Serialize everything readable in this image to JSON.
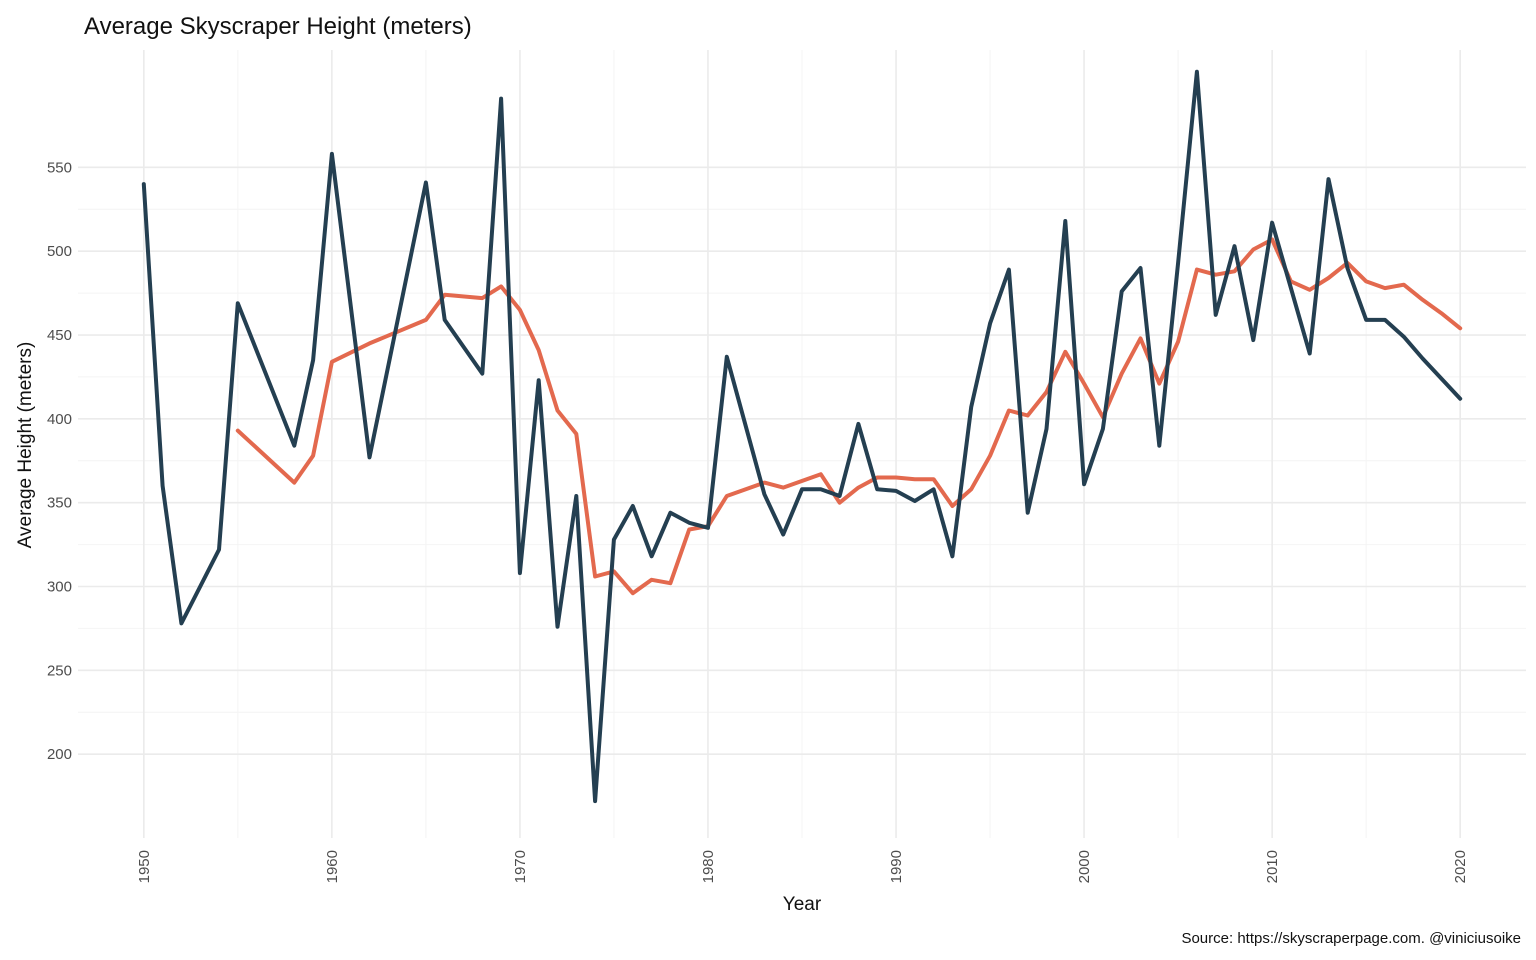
{
  "chart_data": {
    "type": "line",
    "title": "Average Skyscraper Height (meters)",
    "xlabel": "Year",
    "ylabel": "Average Height (meters)",
    "caption": "Source: https://skyscraperpage.com. @viniciusoike",
    "xlim": [
      1946.5,
      2023.5
    ],
    "ylim": [
      150,
      620
    ],
    "x_ticks": [
      1950,
      1960,
      1970,
      1980,
      1990,
      2000,
      2010,
      2020
    ],
    "y_ticks": [
      200,
      250,
      300,
      350,
      400,
      450,
      500,
      550
    ],
    "grid": true,
    "legend": "none",
    "series": [
      {
        "color": "#243f51",
        "x": [
          1950,
          1951,
          1952,
          1954,
          1955,
          1958,
          1959,
          1960,
          1962,
          1965,
          1966,
          1968,
          1969,
          1970,
          1971,
          1972,
          1973,
          1974,
          1975,
          1976,
          1977,
          1978,
          1979,
          1980,
          1981,
          1983,
          1984,
          1985,
          1986,
          1987,
          1988,
          1989,
          1990,
          1991,
          1992,
          1993,
          1994,
          1995,
          1996,
          1997,
          1998,
          1999,
          2000,
          2001,
          2002,
          2003,
          2004,
          2005,
          2006,
          2007,
          2008,
          2009,
          2010,
          2011,
          2012,
          2013,
          2014,
          2015,
          2016,
          2017,
          2018,
          2019,
          2020
        ],
        "values": [
          540,
          360,
          278,
          322,
          469,
          384,
          435,
          558,
          377,
          541,
          459,
          427,
          591,
          308,
          423,
          276,
          354,
          172,
          328,
          348,
          318,
          344,
          338,
          335,
          437,
          355,
          331,
          358,
          358,
          354,
          397,
          358,
          357,
          351,
          358,
          318,
          407,
          457,
          489,
          344,
          394,
          518,
          361,
          394,
          476,
          490,
          384,
          493,
          607,
          462,
          503,
          447,
          517,
          478,
          439,
          543,
          490,
          459,
          459,
          449,
          436,
          424,
          412
        ]
      },
      {
        "color": "#e3694e",
        "x": [
          1955,
          1958,
          1959,
          1960,
          1962,
          1965,
          1966,
          1968,
          1969,
          1970,
          1971,
          1972,
          1973,
          1974,
          1975,
          1976,
          1977,
          1978,
          1979,
          1980,
          1981,
          1983,
          1984,
          1986,
          1987,
          1988,
          1989,
          1990,
          1991,
          1992,
          1993,
          1994,
          1995,
          1996,
          1997,
          1998,
          1999,
          2000,
          2001,
          2002,
          2003,
          2004,
          2005,
          2006,
          2007,
          2008,
          2009,
          2010,
          2011,
          2012,
          2013,
          2014,
          2015,
          2016,
          2017,
          2018,
          2019,
          2020
        ],
        "values": [
          393,
          362,
          378,
          434,
          445,
          459,
          474,
          472,
          479,
          465,
          441,
          405,
          391,
          306,
          309,
          296,
          304,
          302,
          334,
          336,
          354,
          362,
          359,
          367,
          350,
          359,
          365,
          365,
          364,
          364,
          348,
          358,
          378,
          405,
          402,
          416,
          440,
          421,
          401,
          427,
          448,
          421,
          446,
          489,
          486,
          488,
          501,
          507,
          482,
          477,
          484,
          493,
          482,
          478,
          480,
          471,
          463,
          454
        ]
      }
    ]
  }
}
